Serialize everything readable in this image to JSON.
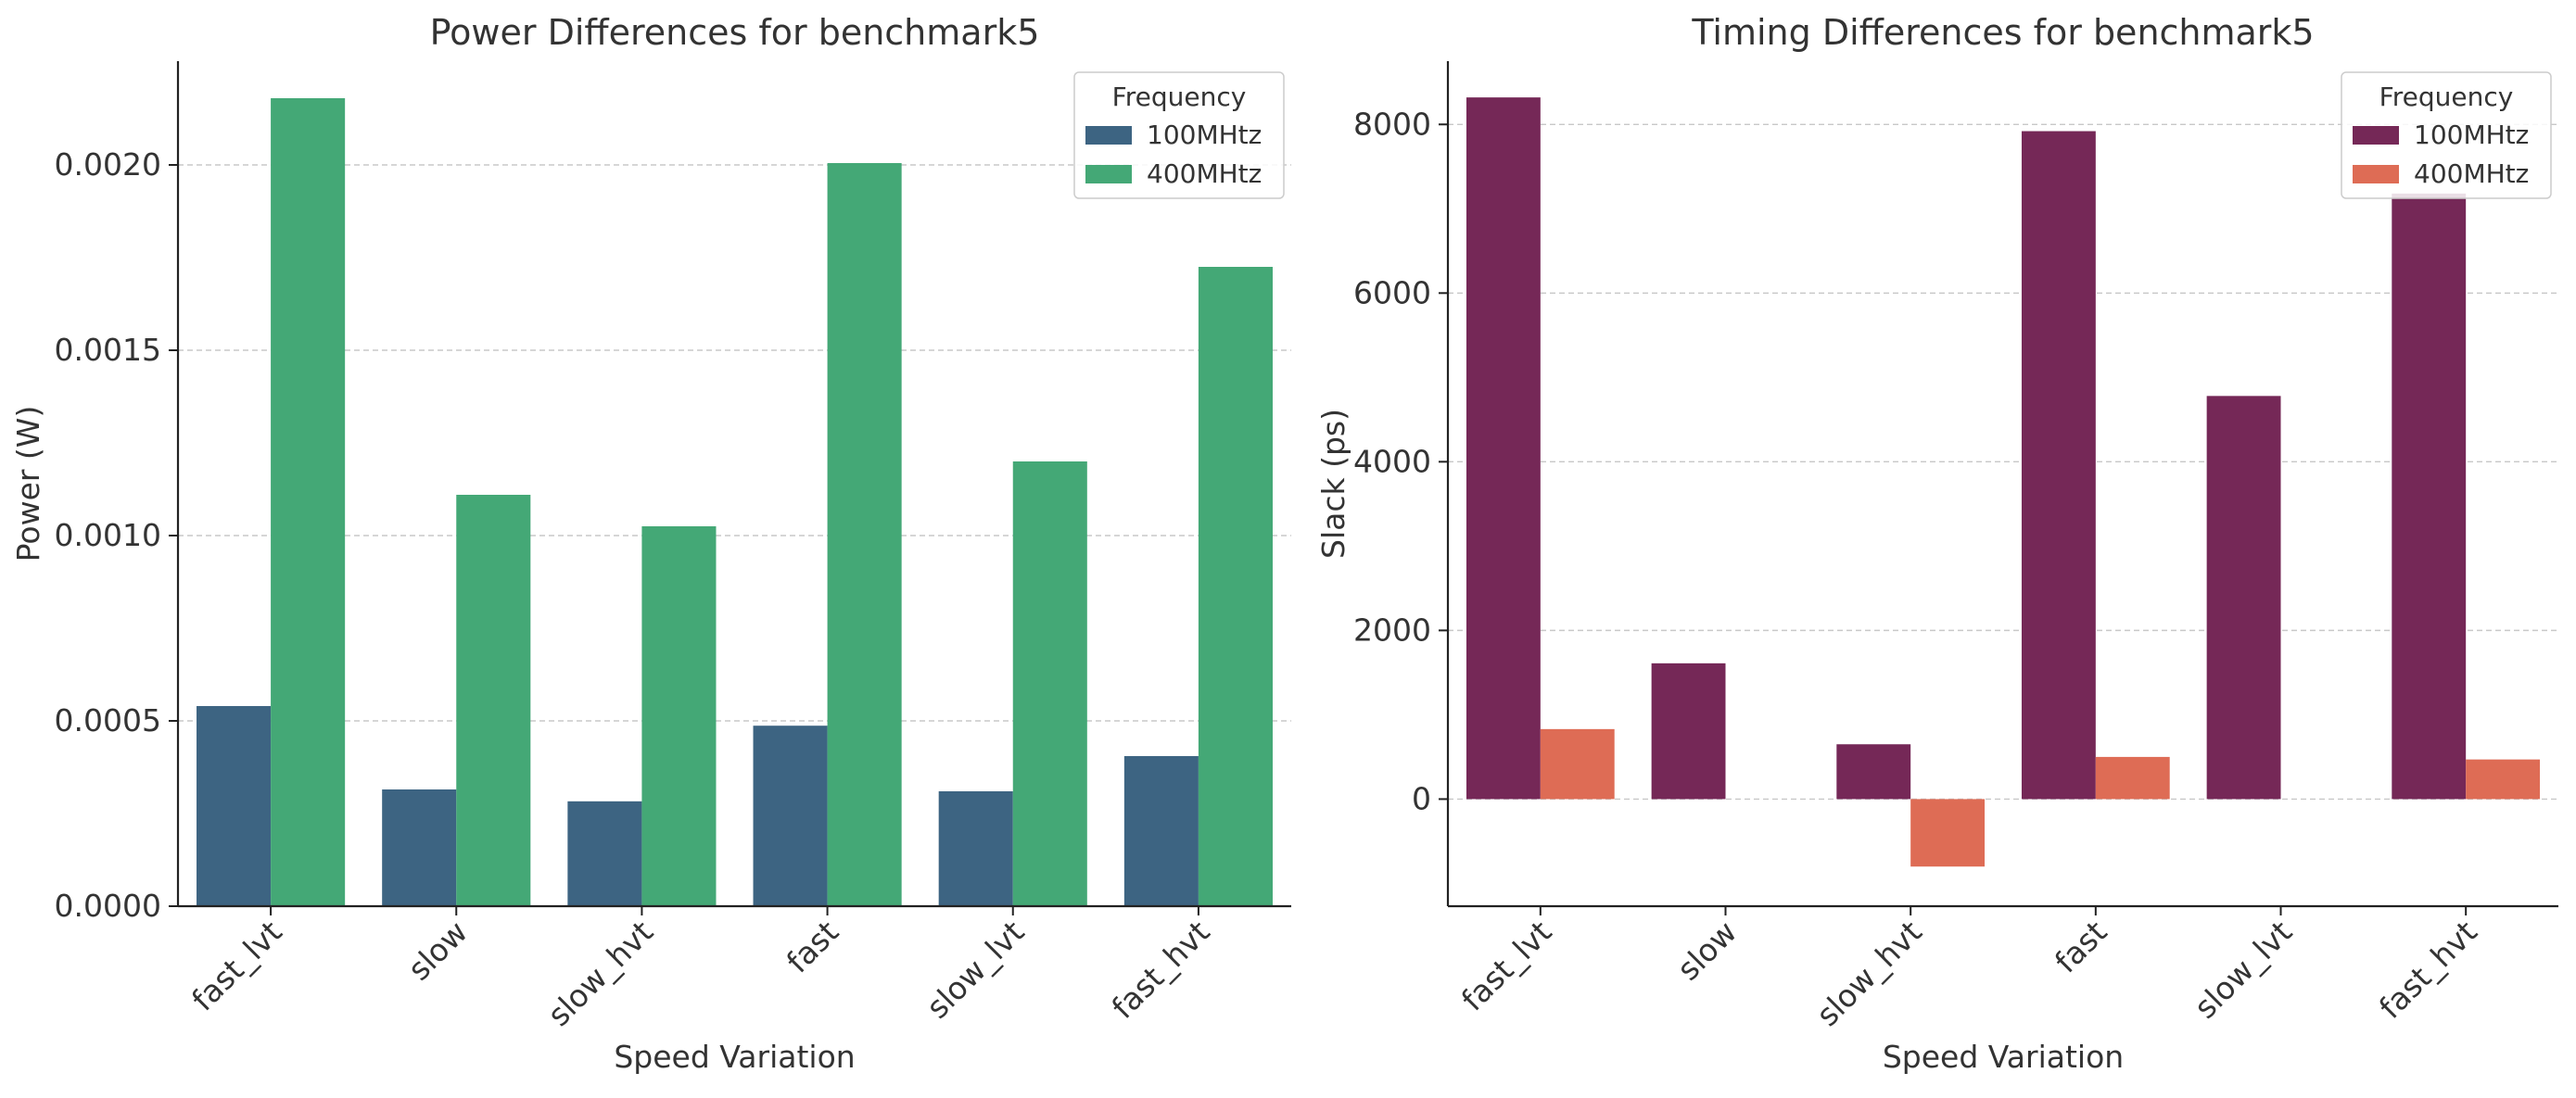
{
  "chart_data": [
    {
      "type": "bar",
      "title": "Power Differences for benchmark5",
      "xlabel": "Speed Variation",
      "ylabel": "Power (W)",
      "categories": [
        "fast_lvt",
        "slow",
        "slow_hvt",
        "fast",
        "slow_lvt",
        "fast_hvt"
      ],
      "series": [
        {
          "name": "100MHtz",
          "color": "#3d6482",
          "values": [
            0.00054,
            0.000315,
            0.000283,
            0.000487,
            0.00031,
            0.000405
          ]
        },
        {
          "name": "400MHtz",
          "color": "#44a876",
          "values": [
            0.00218,
            0.00111,
            0.001025,
            0.002005,
            0.0012,
            0.001725
          ]
        }
      ],
      "ylim": [
        0,
        0.00228
      ],
      "yticks": [
        0,
        0.0005,
        0.001,
        0.0015,
        0.002
      ],
      "ytick_labels": [
        "0.0000",
        "0.0005",
        "0.0010",
        "0.0015",
        "0.0020"
      ],
      "legend": {
        "title": "Frequency",
        "position": "top-right"
      },
      "grid": "y-dashed"
    },
    {
      "type": "bar",
      "title": "Timing Differences for benchmark5",
      "xlabel": "Speed Variation",
      "ylabel": "Slack (ps)",
      "categories": [
        "fast_lvt",
        "slow",
        "slow_hvt",
        "fast",
        "slow_lvt",
        "fast_hvt"
      ],
      "series": [
        {
          "name": "100MHtz",
          "color": "#752857",
          "values": [
            8320,
            1610,
            650,
            7920,
            4780,
            7180
          ]
        },
        {
          "name": "400MHtz",
          "color": "#de6c55",
          "values": [
            830,
            0,
            -800,
            500,
            0,
            470
          ]
        }
      ],
      "ylim": [
        -1270,
        8750
      ],
      "yticks": [
        0,
        2000,
        4000,
        6000,
        8000
      ],
      "ytick_labels": [
        "0",
        "2000",
        "4000",
        "6000",
        "8000"
      ],
      "legend": {
        "title": "Frequency",
        "position": "top-right"
      },
      "grid": "y-dashed"
    }
  ]
}
